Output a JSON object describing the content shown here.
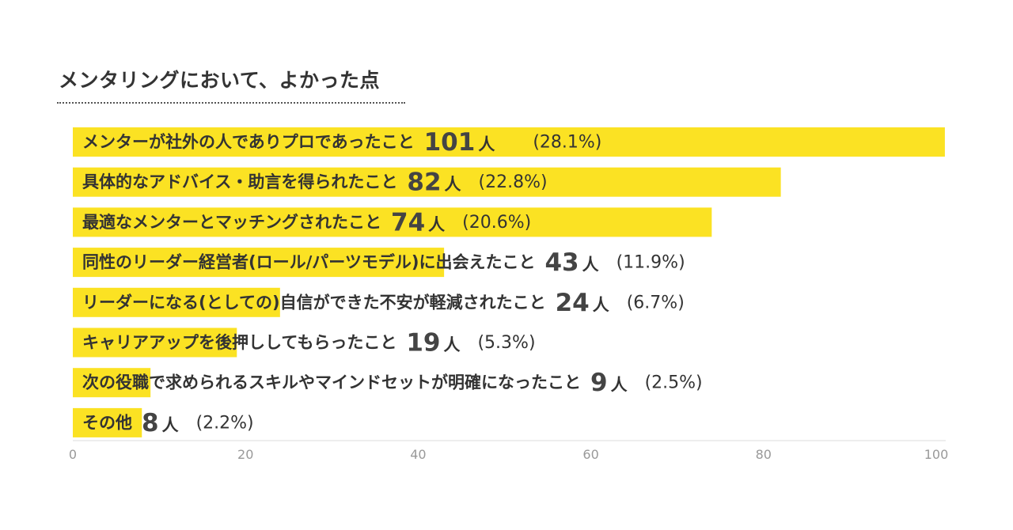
{
  "title": "メンタリングにおいて、よかった点",
  "chart_data": {
    "type": "bar",
    "orientation": "horizontal",
    "title": "メンタリングにおいて、よかった点",
    "bar_color": "#fbe223",
    "xlim": [
      0,
      100
    ],
    "xticks": [
      "0",
      "20",
      "40",
      "60",
      "80",
      "100"
    ],
    "count_unit": "人",
    "categories": [
      "メンターが社外の人でありプロであったこと",
      "具体的なアドバイス・助言を得られたこと",
      "最適なメンターとマッチングされたこと",
      "同性のリーダー経営者(ロール/パーツモデル)に出会えたこと",
      "リーダーになる(としての)自信ができた不安が軽減されたこと",
      "キャリアアップを後押ししてもらったこと",
      "次の役職で求められるスキルやマインドセットが明確になったこと",
      "その他"
    ],
    "values": [
      101,
      82,
      74,
      43,
      24,
      19,
      9,
      8
    ],
    "count_labels": [
      "101",
      "82",
      "74",
      "43",
      "24",
      "19",
      "9",
      "8"
    ],
    "percent_labels": [
      "(28.1%)",
      "(22.8%)",
      "(20.6%)",
      "(11.9%)",
      "(6.7%)",
      "(5.3%)",
      "(2.5%)",
      "(2.2%)"
    ]
  }
}
